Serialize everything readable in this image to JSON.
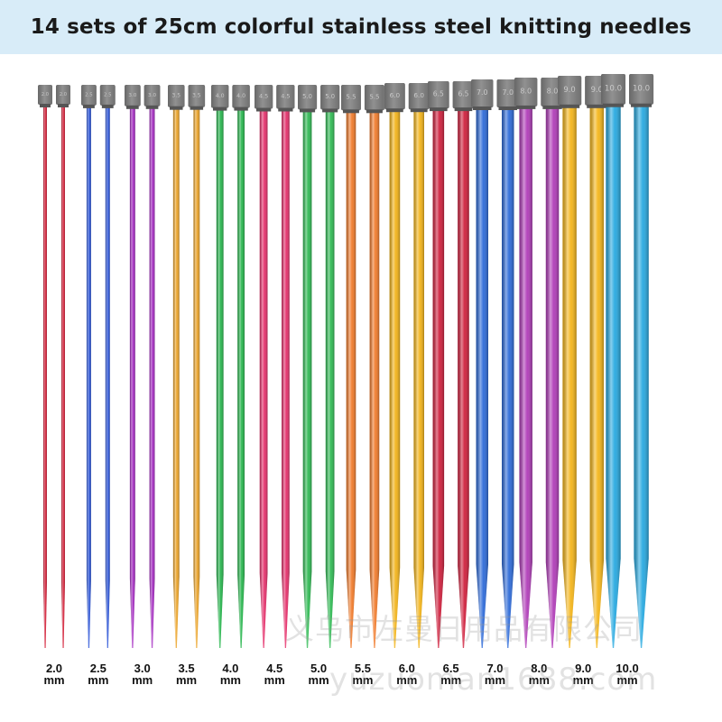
{
  "title": "14 sets of 25cm colorful stainless steel knitting needles",
  "watermark": {
    "company": "义乌市左曼日用品有限公司",
    "url": "yuzuoman1688.com"
  },
  "needle_sets": [
    {
      "size": "2.0",
      "unit": "mm",
      "color": "#d6213a",
      "cap_text": "2.0"
    },
    {
      "size": "2.5",
      "unit": "mm",
      "color": "#2c55d8",
      "cap_text": "2.5"
    },
    {
      "size": "3.0",
      "unit": "mm",
      "color": "#a52cc2",
      "cap_text": "3.0"
    },
    {
      "size": "3.5",
      "unit": "mm",
      "color": "#eba327",
      "cap_text": "3.5"
    },
    {
      "size": "4.0",
      "unit": "mm",
      "color": "#26b54c",
      "cap_text": "4.0"
    },
    {
      "size": "4.5",
      "unit": "mm",
      "color": "#e5306b",
      "cap_text": "4.5"
    },
    {
      "size": "5.0",
      "unit": "mm",
      "color": "#2fba53",
      "cap_text": "5.0"
    },
    {
      "size": "5.5",
      "unit": "mm",
      "color": "#f07a2a",
      "cap_text": "5.5"
    },
    {
      "size": "6.0",
      "unit": "mm",
      "color": "#f2b318",
      "cap_text": "6.0"
    },
    {
      "size": "6.5",
      "unit": "mm",
      "color": "#cf1f3c",
      "cap_text": "6.5"
    },
    {
      "size": "7.0",
      "unit": "mm",
      "color": "#2d6ad8",
      "cap_text": "7.0"
    },
    {
      "size": "8.0",
      "unit": "mm",
      "color": "#b03cb8",
      "cap_text": "8.0"
    },
    {
      "size": "9.0",
      "unit": "mm",
      "color": "#f4b519",
      "cap_text": "9.0"
    },
    {
      "size": "10.0",
      "unit": "mm",
      "color": "#27a9e0",
      "cap_text": "10.0"
    }
  ],
  "colors": {
    "title_background": "#d8ecf8",
    "cap": "#7b7b7b"
  }
}
